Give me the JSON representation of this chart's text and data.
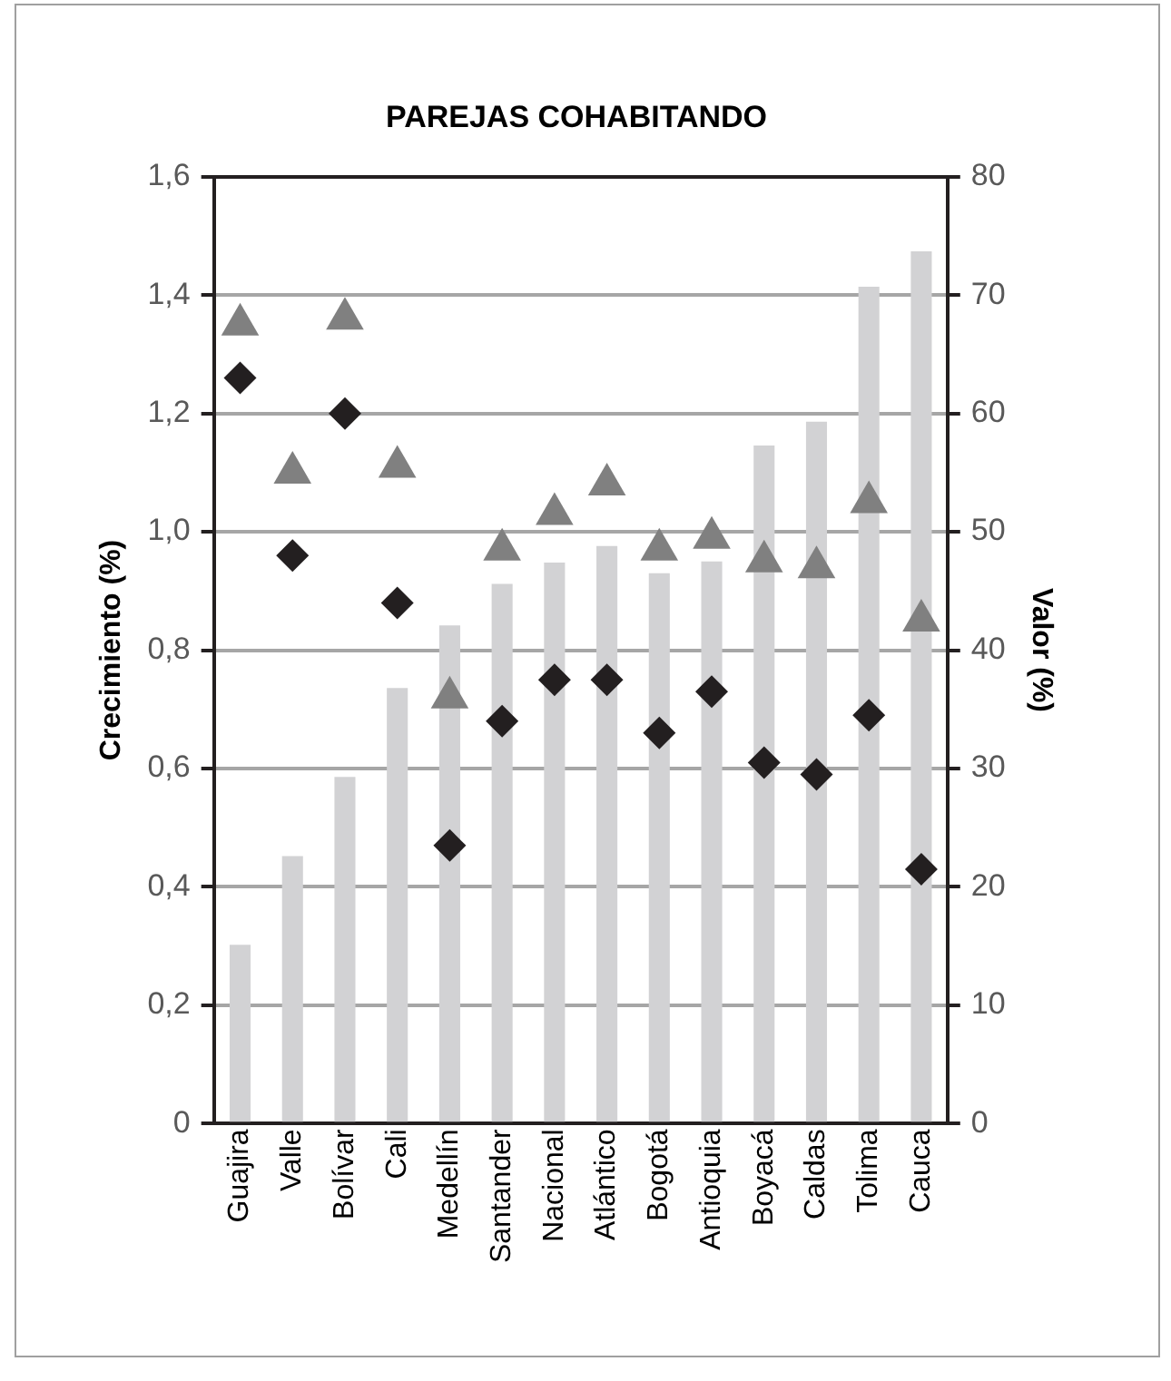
{
  "chart_data": {
    "type": "bar",
    "title": "PAREJAS COHABITANDO",
    "ylabel": "Crecimiento (%)",
    "y2label": "Valor (%)",
    "categories": [
      "Guajira",
      "Valle",
      "Bolívar",
      "Cali",
      "Medellín",
      "Santander",
      "Nacional",
      "Atlántico",
      "Bogotá",
      "Antioquia",
      "Boyacá",
      "Caldas",
      "Tolima",
      "Cauca"
    ],
    "series": [
      {
        "axis": "y2",
        "color": "#d2d2d4",
        "values": [
          15.1,
          22.6,
          29.3,
          36.8,
          42.1,
          45.6,
          47.4,
          48.8,
          46.5,
          47.5,
          57.3,
          59.3,
          70.7,
          73.7
        ]
      },
      {
        "type": "scatter",
        "marker": "triangle",
        "color": "#808080",
        "values": [
          1.35,
          1.1,
          1.36,
          1.11,
          0.72,
          0.97,
          1.03,
          1.08,
          0.97,
          0.99,
          0.95,
          0.94,
          1.05,
          0.85
        ]
      },
      {
        "type": "scatter",
        "marker": "diamond",
        "color": "#231f20",
        "values": [
          1.26,
          0.96,
          1.2,
          0.88,
          0.47,
          0.68,
          0.75,
          0.75,
          0.66,
          0.73,
          0.61,
          0.59,
          0.69,
          0.43
        ]
      }
    ],
    "ylim": [
      0,
      1.6
    ],
    "yticks": [
      0,
      {
        "value": 0.2,
        "label": "0,2"
      },
      {
        "value": 0.4,
        "label": "0,4"
      },
      {
        "value": 0.6,
        "label": "0,6"
      },
      {
        "value": 0.8,
        "label": "0,8"
      },
      {
        "value": 1,
        "label": "1,0"
      },
      {
        "value": 1.2,
        "label": "1,2"
      },
      {
        "value": 1.4,
        "label": "1,4"
      },
      {
        "value": 1.6,
        "label": "1,6"
      }
    ],
    "y2lim": [
      0,
      80
    ],
    "y2ticks": [
      0,
      10,
      20,
      30,
      40,
      50,
      60,
      70,
      80
    ],
    "grid": "y",
    "legend": false
  }
}
